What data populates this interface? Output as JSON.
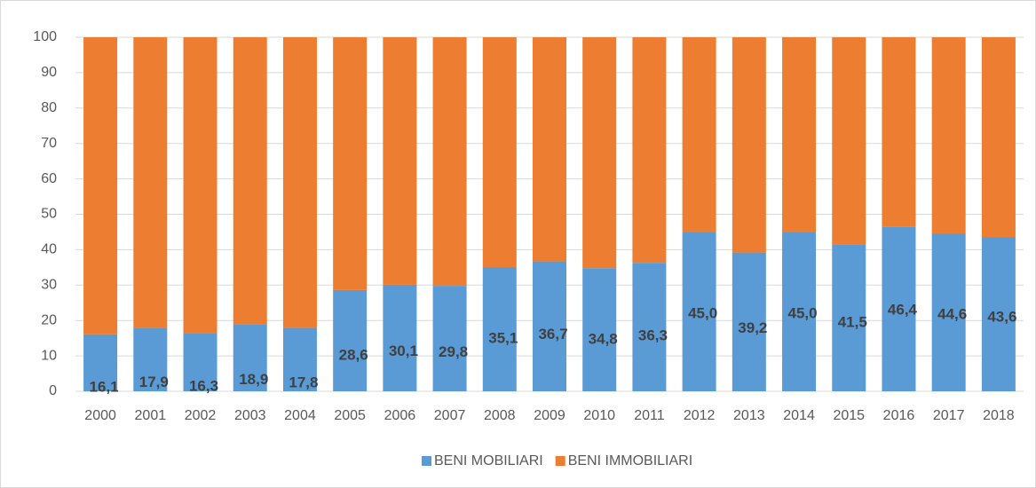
{
  "chart_data": {
    "type": "stacked_bar",
    "categories": [
      "2000",
      "2001",
      "2002",
      "2003",
      "2004",
      "2005",
      "2006",
      "2007",
      "2008",
      "2009",
      "2010",
      "2011",
      "2012",
      "2013",
      "2014",
      "2015",
      "2016",
      "2017",
      "2018"
    ],
    "series": [
      {
        "name": "BENI MOBILIARI",
        "color": "#5b9bd5",
        "values": [
          16.1,
          17.9,
          16.3,
          18.9,
          17.8,
          28.6,
          30.1,
          29.8,
          35.1,
          36.7,
          34.8,
          36.3,
          45.0,
          39.2,
          45.0,
          41.5,
          46.4,
          44.6,
          43.6
        ],
        "value_labels": [
          "16,1",
          "17,9",
          "16,3",
          "18,9",
          "17,8",
          "28,6",
          "30,1",
          "29,8",
          "35,1",
          "36,7",
          "34,8",
          "36,3",
          "45,0",
          "39,2",
          "45,0",
          "41,5",
          "46,4",
          "44,6",
          "43,6"
        ]
      },
      {
        "name": "BENI IMMOBILIARI",
        "color": "#ed7d31",
        "values": [
          83.9,
          82.1,
          83.7,
          81.1,
          82.2,
          71.4,
          69.9,
          70.2,
          64.9,
          63.3,
          65.2,
          63.7,
          55.0,
          60.8,
          55.0,
          58.5,
          53.6,
          55.4,
          56.4
        ]
      }
    ],
    "ylim": [
      0,
      100
    ],
    "yticks": [
      0,
      10,
      20,
      30,
      40,
      50,
      60,
      70,
      80,
      90,
      100
    ],
    "grid": true,
    "legend": "bottom"
  }
}
